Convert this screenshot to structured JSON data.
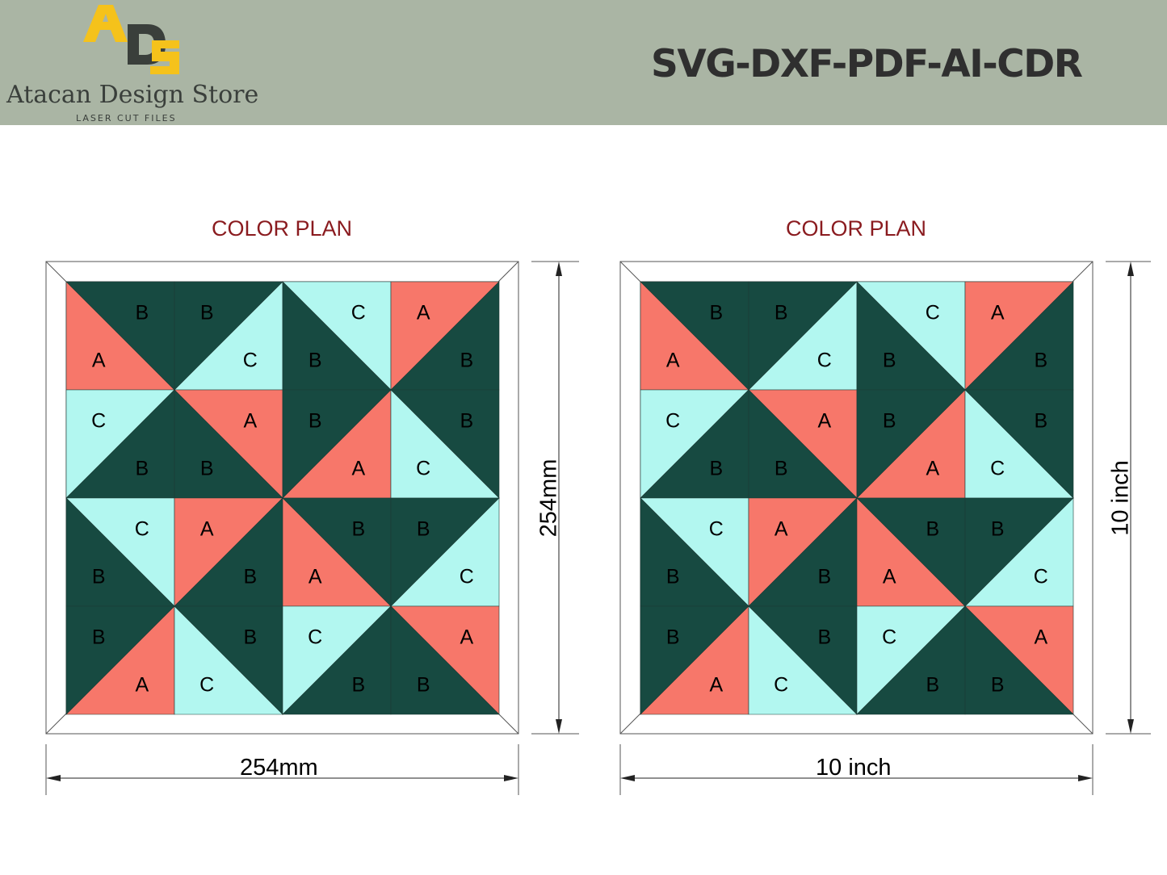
{
  "header": {
    "logo_mark": "ADS",
    "logo_name": "Atacan Design Store",
    "logo_tagline": "LASER CUT FILES",
    "formats": "SVG-DXF-PDF-AI-CDR"
  },
  "colors": {
    "header_bg": "#aab5a4",
    "logo_yellow": "#f5c21b",
    "logo_dark": "#3a3f3b",
    "A": "#f7776a",
    "B": "#174a41",
    "C": "#b2f7f0",
    "title": "#8a1b1f"
  },
  "plans": [
    {
      "title": "COLOR PLAN",
      "width_label": "254mm",
      "height_label": "254mm"
    },
    {
      "title": "COLOR PLAN",
      "width_label": "10 inch",
      "height_label": "10 inch"
    }
  ],
  "grid": [
    [
      {
        "split": "tl-br",
        "first": "B",
        "second": "A"
      },
      {
        "split": "tr-bl",
        "first": "B",
        "second": "C"
      },
      {
        "split": "tl-br",
        "first": "C",
        "second": "B"
      },
      {
        "split": "tr-bl",
        "first": "A",
        "second": "B"
      }
    ],
    [
      {
        "split": "tr-bl",
        "first": "C",
        "second": "B"
      },
      {
        "split": "tl-br",
        "first": "A",
        "second": "B"
      },
      {
        "split": "tr-bl",
        "first": "B",
        "second": "A"
      },
      {
        "split": "tl-br",
        "first": "B",
        "second": "C"
      }
    ],
    [
      {
        "split": "tl-br",
        "first": "C",
        "second": "B"
      },
      {
        "split": "tr-bl",
        "first": "A",
        "second": "B"
      },
      {
        "split": "tl-br",
        "first": "B",
        "second": "A"
      },
      {
        "split": "tr-bl",
        "first": "B",
        "second": "C"
      }
    ],
    [
      {
        "split": "tr-bl",
        "first": "B",
        "second": "A"
      },
      {
        "split": "tl-br",
        "first": "B",
        "second": "C"
      },
      {
        "split": "tr-bl",
        "first": "C",
        "second": "B"
      },
      {
        "split": "tl-br",
        "first": "A",
        "second": "B"
      }
    ]
  ]
}
